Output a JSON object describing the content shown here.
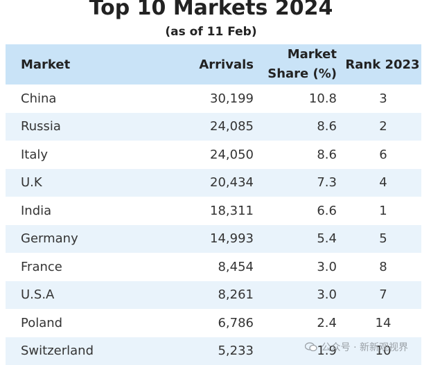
{
  "title": "Top 10 Markets 2024",
  "subtitle": "(as of 11 Feb)",
  "header": {
    "market": "Market",
    "arrivals": "Arrivals",
    "share_line1": "Market",
    "share_line2": "Share (%)",
    "rank": "Rank 2023"
  },
  "rows": [
    {
      "market": "China",
      "arrivals": "30,199",
      "share": "10.8",
      "rank": "3"
    },
    {
      "market": "Russia",
      "arrivals": "24,085",
      "share": "8.6",
      "rank": "2"
    },
    {
      "market": "Italy",
      "arrivals": "24,050",
      "share": "8.6",
      "rank": "6"
    },
    {
      "market": "U.K",
      "arrivals": "20,434",
      "share": "7.3",
      "rank": "4"
    },
    {
      "market": "India",
      "arrivals": "18,311",
      "share": "6.6",
      "rank": "1"
    },
    {
      "market": "Germany",
      "arrivals": "14,993",
      "share": "5.4",
      "rank": "5"
    },
    {
      "market": "France",
      "arrivals": "8,454",
      "share": "3.0",
      "rank": "8"
    },
    {
      "market": "U.S.A",
      "arrivals": "8,261",
      "share": "3.0",
      "rank": "7"
    },
    {
      "market": "Poland",
      "arrivals": "6,786",
      "share": "2.4",
      "rank": "14"
    },
    {
      "market": "Switzerland",
      "arrivals": "5,233",
      "share": "1.9",
      "rank": "10"
    }
  ],
  "watermark": "公众号 · 新新观视界",
  "colors": {
    "header_bg": "#c9e3f7",
    "alt_row_bg": "#e9f3fb"
  }
}
